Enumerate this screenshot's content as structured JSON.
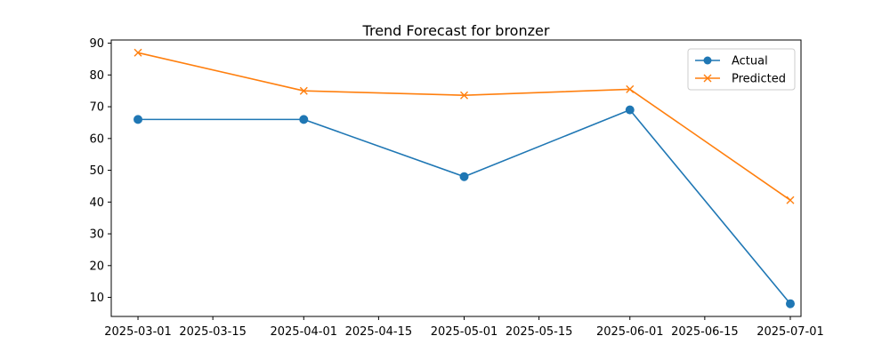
{
  "chart_data": {
    "type": "line",
    "title": "Trend Forecast for bronzer",
    "xlabel": "",
    "ylabel": "",
    "x_ticks": [
      "2025-03-01",
      "2025-03-15",
      "2025-04-01",
      "2025-04-15",
      "2025-05-01",
      "2025-05-15",
      "2025-06-01",
      "2025-06-15",
      "2025-07-01"
    ],
    "y_ticks": [
      10,
      20,
      30,
      40,
      50,
      60,
      70,
      80,
      90
    ],
    "xlim": [
      "2025-02-24",
      "2025-07-03"
    ],
    "ylim": [
      4,
      91
    ],
    "grid": false,
    "legend_position": "top-right",
    "x": [
      "2025-03-01",
      "2025-04-01",
      "2025-05-01",
      "2025-06-01",
      "2025-07-01"
    ],
    "series": [
      {
        "name": "Actual",
        "color": "#1f77b4",
        "marker": "circle",
        "values": [
          66,
          66,
          48,
          69,
          8
        ]
      },
      {
        "name": "Predicted",
        "color": "#ff7f0e",
        "marker": "x",
        "values": [
          87,
          75,
          73.6,
          75.5,
          40.6
        ]
      }
    ]
  }
}
